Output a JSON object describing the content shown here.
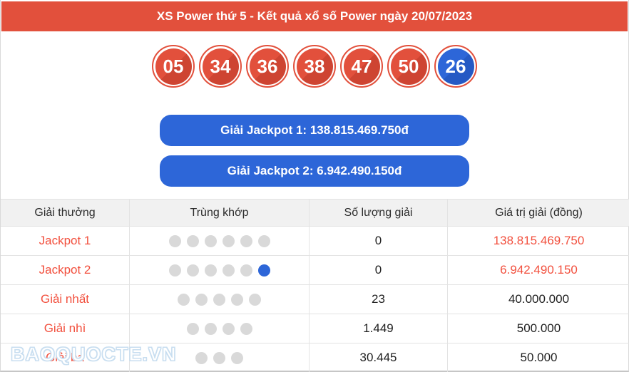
{
  "header": {
    "title": "XS Power thứ 5 - Kết quả xổ số Power ngày 20/07/2023"
  },
  "balls": [
    {
      "number": "05",
      "type": "main"
    },
    {
      "number": "34",
      "type": "main"
    },
    {
      "number": "36",
      "type": "main"
    },
    {
      "number": "38",
      "type": "main"
    },
    {
      "number": "47",
      "type": "main"
    },
    {
      "number": "50",
      "type": "main"
    },
    {
      "number": "26",
      "type": "power"
    }
  ],
  "jackpot_buttons": [
    {
      "label": "Giải Jackpot 1: 138.815.469.750đ"
    },
    {
      "label": "Giải Jackpot 2: 6.942.490.150đ"
    }
  ],
  "table": {
    "headers": [
      "Giải thưởng",
      "Trùng khớp",
      "Số lượng giải",
      "Giá trị giải (đồng)"
    ],
    "rows": [
      {
        "prize": "Jackpot 1",
        "match_dots": 6,
        "power_dot": false,
        "count": "0",
        "value": "138.815.469.750",
        "value_red": true
      },
      {
        "prize": "Jackpot 2",
        "match_dots": 5,
        "power_dot": true,
        "count": "0",
        "value": "6.942.490.150",
        "value_red": true
      },
      {
        "prize": "Giải nhất",
        "match_dots": 5,
        "power_dot": false,
        "count": "23",
        "value": "40.000.000",
        "value_red": false
      },
      {
        "prize": "Giải nhì",
        "match_dots": 4,
        "power_dot": false,
        "count": "1.449",
        "value": "500.000",
        "value_red": false
      },
      {
        "prize": "Giải ba",
        "match_dots": 3,
        "power_dot": false,
        "count": "30.445",
        "value": "50.000",
        "value_red": false
      }
    ]
  },
  "watermark": "BAOQUOCTE.VN",
  "colors": {
    "red": "#e2503c",
    "red_dark": "#ce4432",
    "blue": "#2d66d8",
    "blue_dark": "#2559c4",
    "text_red": "#f2503e",
    "dot_gray": "#d9d9d9",
    "border": "#e3e3e3"
  }
}
